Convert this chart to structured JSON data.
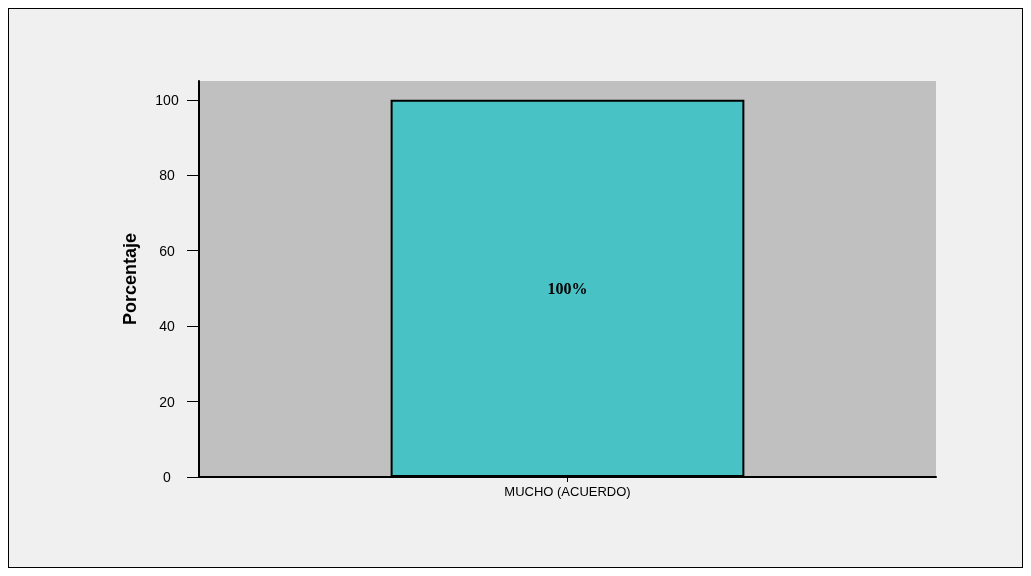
{
  "chart_data": {
    "type": "bar",
    "ylabel": "Porcentaje",
    "categories": [
      "MUCHO (ACUERDO)"
    ],
    "values": [
      100
    ],
    "value_labels": [
      "100%"
    ],
    "color": "#49c2c6",
    "ylim": [
      0,
      105
    ],
    "yticks": [
      0,
      20,
      40,
      60,
      80,
      100
    ],
    "grid": false
  }
}
